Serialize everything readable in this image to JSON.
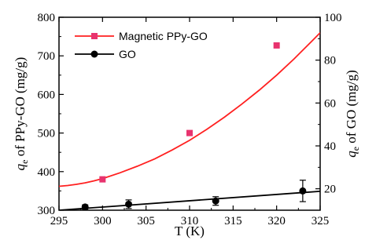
{
  "chart_data": {
    "type": "scatter",
    "xlabel": "T (K)",
    "ylabel_left_main": "q",
    "ylabel_left_sub": "e",
    "ylabel_left_rest": " of PPy-GO (mg/g)",
    "ylabel_right_main": "q",
    "ylabel_right_sub": "e",
    "ylabel_right_rest": " of GO (mg/g)",
    "xlim": [
      295,
      325
    ],
    "ylim_left": [
      300,
      800
    ],
    "ylim_right": [
      10,
      100
    ],
    "x_ticks": [
      "295",
      "300",
      "305",
      "310",
      "315",
      "320",
      "325"
    ],
    "y_left_ticks": [
      "300",
      "400",
      "500",
      "600",
      "700",
      "800"
    ],
    "y_right_ticks": [
      "20",
      "40",
      "60",
      "80",
      "100"
    ],
    "legend_position": "top-left",
    "series": [
      {
        "name": "Magnetic PPy-GO",
        "axis": "left",
        "color": "#e8336e",
        "marker": "square",
        "x": [
          300,
          310,
          320
        ],
        "y": [
          380,
          500,
          727
        ],
        "fit": [
          [
            295,
            362
          ],
          [
            296,
            364
          ],
          [
            297,
            367
          ],
          [
            298,
            371
          ],
          [
            299,
            376
          ],
          [
            300,
            382
          ],
          [
            302,
            397
          ],
          [
            304,
            414
          ],
          [
            306,
            433
          ],
          [
            308,
            456
          ],
          [
            310,
            481
          ],
          [
            312,
            510
          ],
          [
            314,
            541
          ],
          [
            316,
            575
          ],
          [
            318,
            611
          ],
          [
            320,
            650
          ],
          [
            322,
            692
          ],
          [
            324,
            737
          ],
          [
            325,
            760
          ]
        ],
        "fit_color": "#ff2020"
      },
      {
        "name": "GO",
        "axis": "right",
        "color": "#000000",
        "marker": "circle",
        "x": [
          298,
          303,
          313,
          323
        ],
        "y": [
          11.5,
          12.8,
          14.3,
          19.0
        ],
        "err": [
          1.0,
          2.0,
          2.0,
          5.0
        ],
        "fit": [
          [
            295,
            10.0
          ],
          [
            325,
            18.8
          ]
        ],
        "fit_color": "#000000"
      }
    ]
  }
}
